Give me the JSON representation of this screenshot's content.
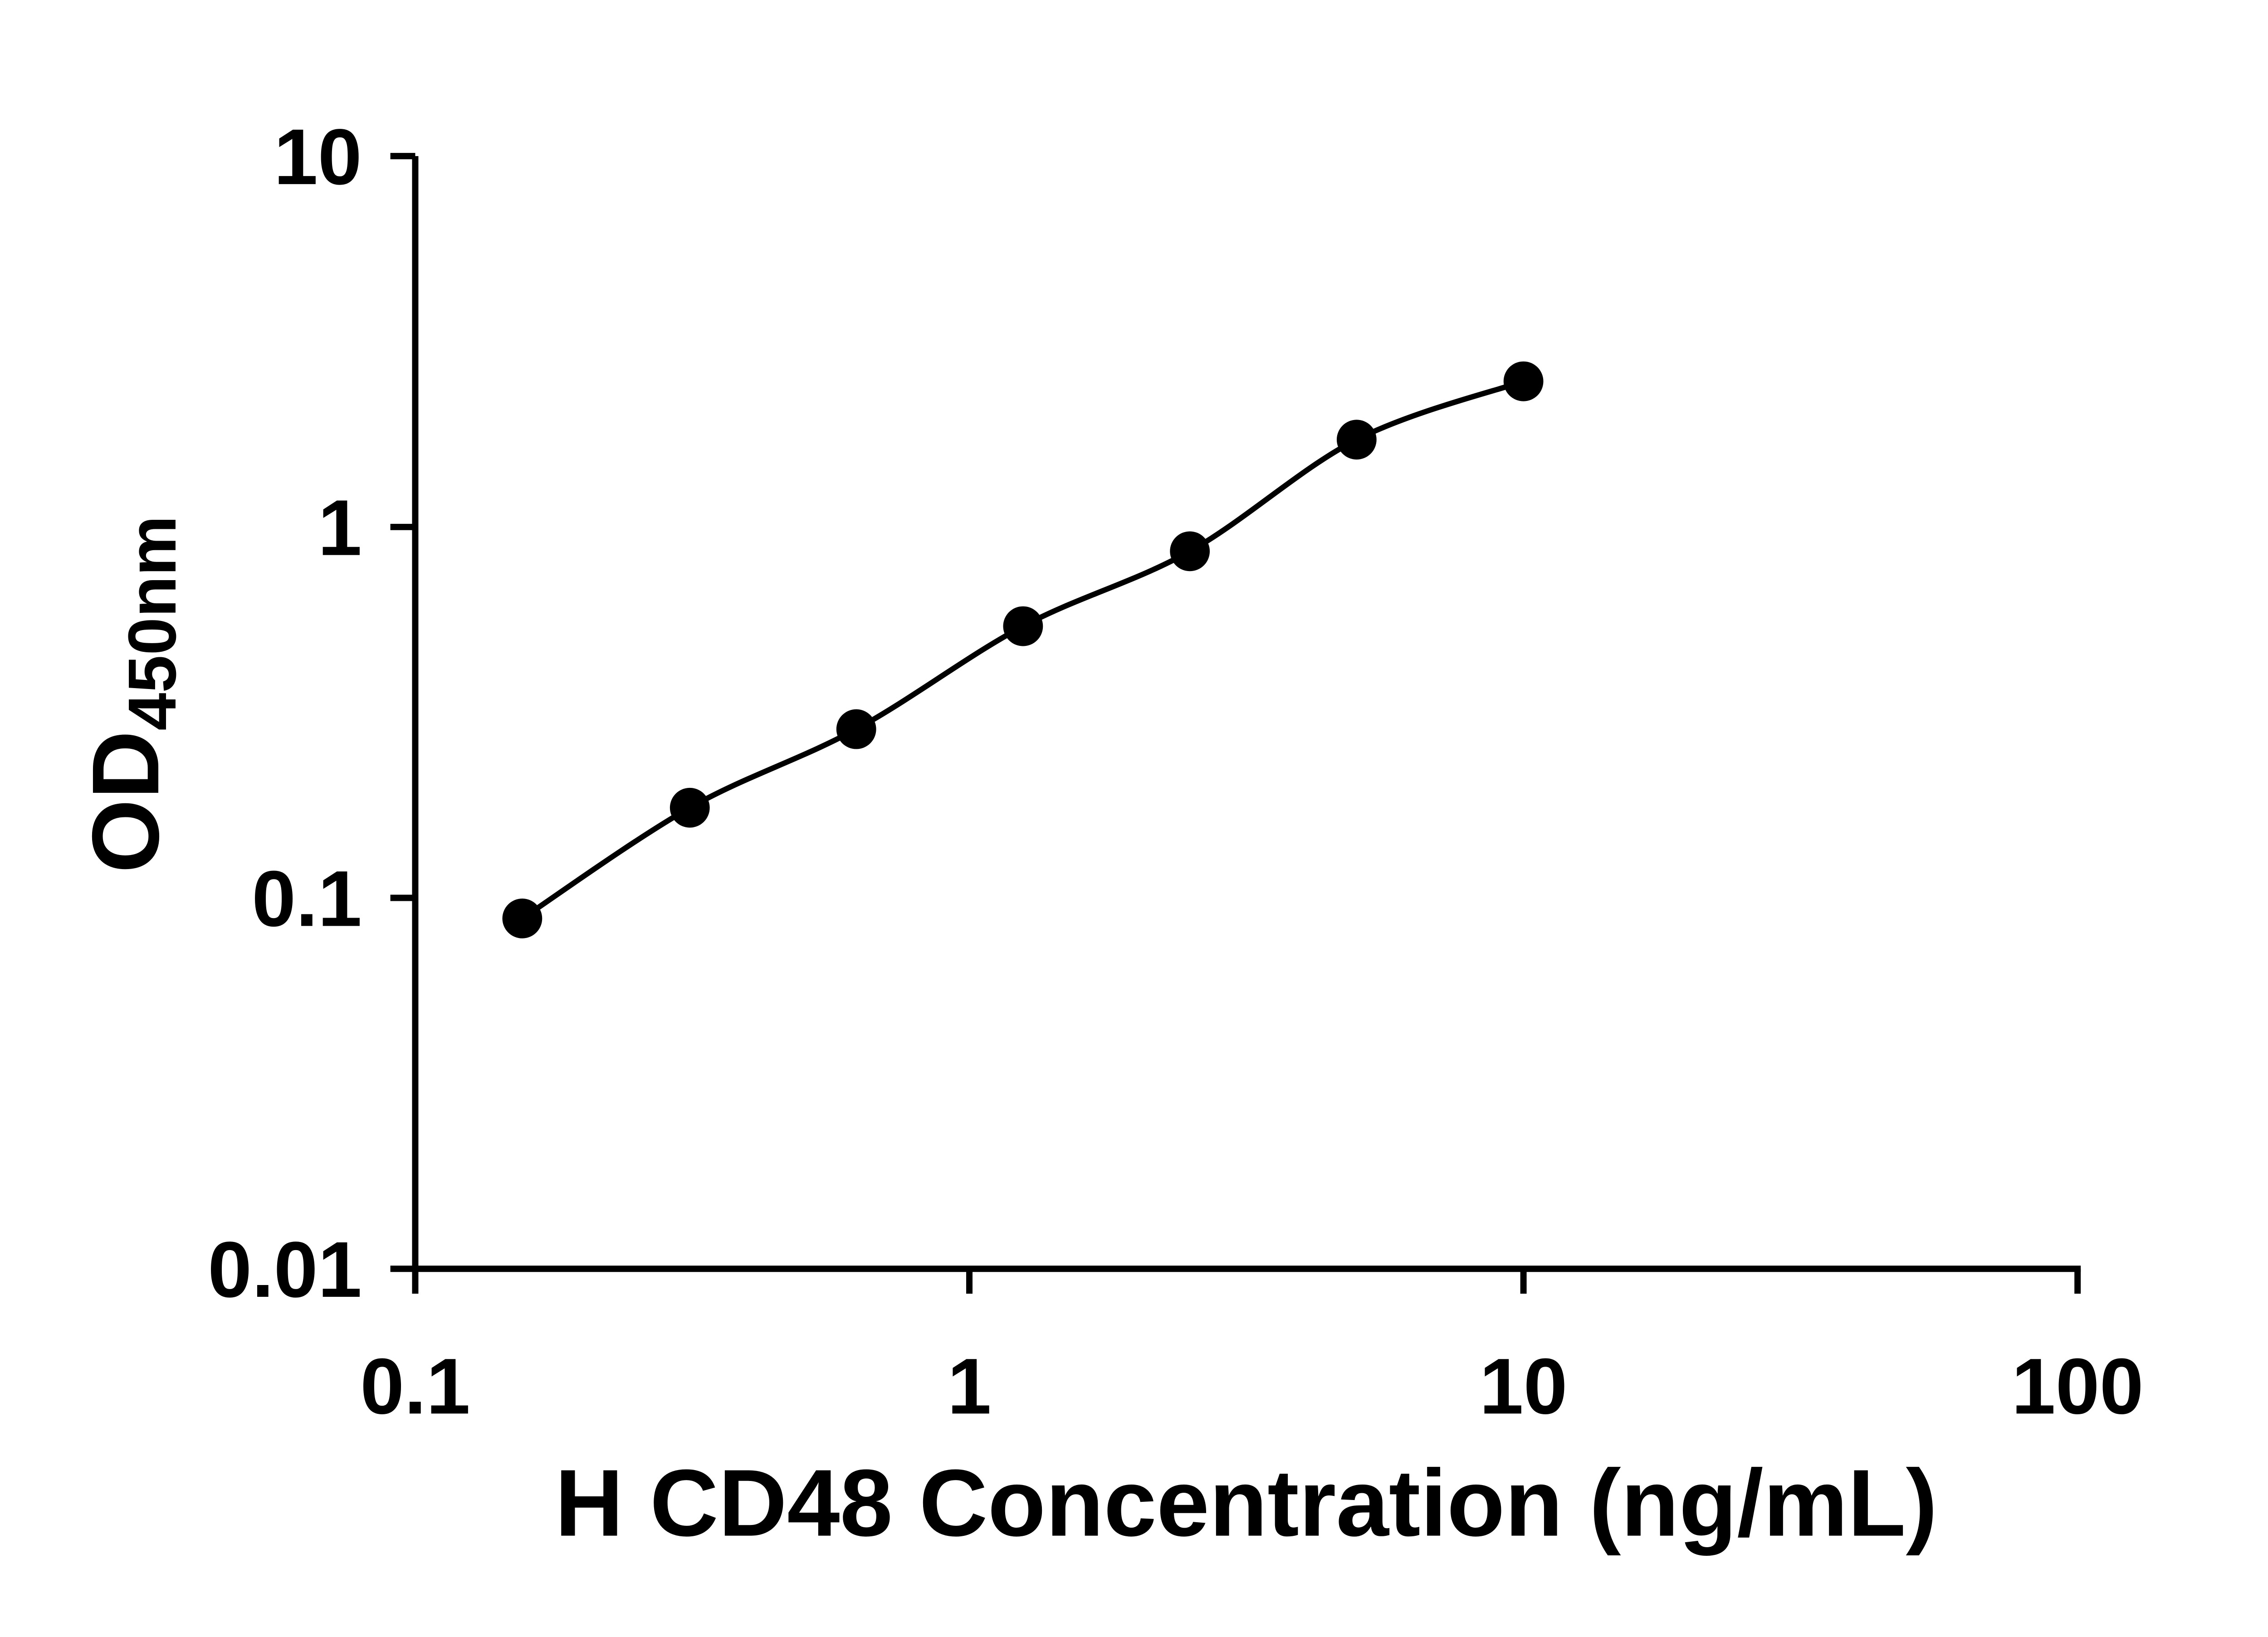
{
  "page": {
    "background": "#ffffff"
  },
  "chart_data": {
    "type": "scatter",
    "title": "",
    "xlabel": "H CD48 Concentration (ng/mL)",
    "ylabel": "OD450nm",
    "ylabel_main": "OD",
    "ylabel_sub": "450nm",
    "x_scale": "log10",
    "y_scale": "log10",
    "xlim": [
      0.1,
      100
    ],
    "ylim": [
      0.01,
      10
    ],
    "x_tick_values": [
      0.1,
      1,
      10,
      100
    ],
    "x_tick_labels": [
      "0.1",
      "1",
      "10",
      "100"
    ],
    "y_tick_values": [
      0.01,
      0.1,
      1,
      10
    ],
    "y_tick_labels": [
      "0.01",
      "0.1",
      "1",
      "10"
    ],
    "x": [
      0.156,
      0.313,
      0.625,
      1.25,
      2.5,
      5,
      10
    ],
    "y": [
      0.088,
      0.175,
      0.285,
      0.54,
      0.86,
      1.72,
      2.47
    ],
    "marker": "filled-circle",
    "marker_color": "#000000",
    "curve": "smooth-fit-through-points",
    "curve_color": "#000000",
    "axis_color": "#000000",
    "grid": "off",
    "legend": "none"
  }
}
